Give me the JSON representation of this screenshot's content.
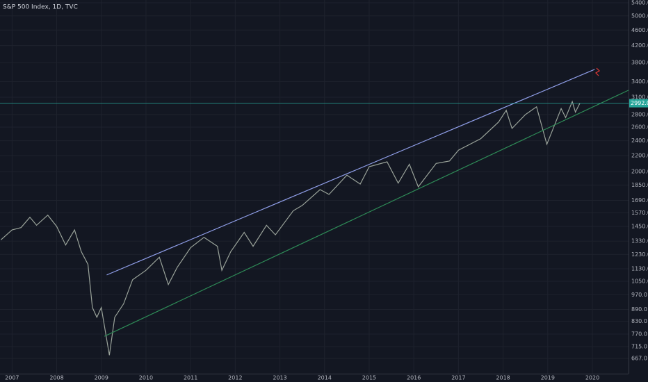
{
  "chart_data": {
    "type": "line",
    "title": "S&P 500 Index, 1D, TVC",
    "log_scale": true,
    "grid": true,
    "xlim": [
      2006.73,
      2020.81
    ],
    "xticks": [
      2007,
      2008,
      2009,
      2010,
      2011,
      2012,
      2013,
      2014,
      2015,
      2016,
      2017,
      2018,
      2019,
      2020
    ],
    "ylim": [
      610,
      5490
    ],
    "yticks": [
      {
        "value": 667,
        "label": "667.0"
      },
      {
        "value": 715,
        "label": "715.0"
      },
      {
        "value": 770,
        "label": "770.0"
      },
      {
        "value": 830,
        "label": "830.0"
      },
      {
        "value": 890,
        "label": "890.0"
      },
      {
        "value": 970,
        "label": "970.0"
      },
      {
        "value": 1050,
        "label": "1050.0"
      },
      {
        "value": 1130,
        "label": "1130.0"
      },
      {
        "value": 1230,
        "label": "1230.0"
      },
      {
        "value": 1330,
        "label": "1330.0"
      },
      {
        "value": 1450,
        "label": "1450.0"
      },
      {
        "value": 1570,
        "label": "1570.0"
      },
      {
        "value": 1690,
        "label": "1690.0"
      },
      {
        "value": 1850,
        "label": "1850.0"
      },
      {
        "value": 2000,
        "label": "2000.0"
      },
      {
        "value": 2200,
        "label": "2200.0"
      },
      {
        "value": 2400,
        "label": "2400.0"
      },
      {
        "value": 2600,
        "label": "2600.0"
      },
      {
        "value": 2800,
        "label": "2800.0"
      },
      {
        "value": 3100,
        "label": "3100.0"
      },
      {
        "value": 3400,
        "label": "3400.0"
      },
      {
        "value": 3800,
        "label": "3800.0"
      },
      {
        "value": 4200,
        "label": "4200.0"
      },
      {
        "value": 4600,
        "label": "4600.0"
      },
      {
        "value": 5000,
        "label": "5000.0"
      },
      {
        "value": 5400,
        "label": "5400.0"
      }
    ],
    "series": [
      {
        "color": "#9aa39a",
        "x": [
          2006.75,
          2007.0,
          2007.2,
          2007.4,
          2007.55,
          2007.8,
          2008.0,
          2008.2,
          2008.4,
          2008.55,
          2008.7,
          2008.8,
          2008.9,
          2009.0,
          2009.18,
          2009.3,
          2009.5,
          2009.7,
          2010.0,
          2010.3,
          2010.5,
          2010.7,
          2011.0,
          2011.3,
          2011.6,
          2011.7,
          2011.9,
          2012.2,
          2012.4,
          2012.7,
          2012.9,
          2013.3,
          2013.5,
          2013.9,
          2014.1,
          2014.5,
          2014.8,
          2015.0,
          2015.4,
          2015.65,
          2015.9,
          2016.1,
          2016.5,
          2016.8,
          2017.0,
          2017.5,
          2017.9,
          2018.07,
          2018.2,
          2018.5,
          2018.75,
          2018.98,
          2019.3,
          2019.4,
          2019.55,
          2019.62,
          2019.72
        ],
        "values": [
          1340,
          1420,
          1440,
          1530,
          1460,
          1550,
          1450,
          1300,
          1420,
          1250,
          1160,
          900,
          850,
          900,
          680,
          850,
          920,
          1060,
          1120,
          1210,
          1030,
          1140,
          1280,
          1360,
          1290,
          1120,
          1250,
          1400,
          1290,
          1460,
          1380,
          1590,
          1640,
          1800,
          1750,
          1960,
          1860,
          2060,
          2120,
          1870,
          2090,
          1830,
          2100,
          2130,
          2270,
          2430,
          2680,
          2870,
          2580,
          2800,
          2930,
          2350,
          2900,
          2750,
          3020,
          2840,
          2992
        ]
      }
    ],
    "trend_lines": [
      {
        "color": "#8f9ee8",
        "x": [
          2009.12,
          2020.05
        ],
        "y": [
          1090,
          3650
        ]
      },
      {
        "color": "#2e8b57",
        "x": [
          2009.07,
          2020.81
        ],
        "y": [
          760,
          3230
        ]
      }
    ],
    "last_price": {
      "value": 2992,
      "label": "2992.0",
      "color": "#26a69a"
    }
  }
}
